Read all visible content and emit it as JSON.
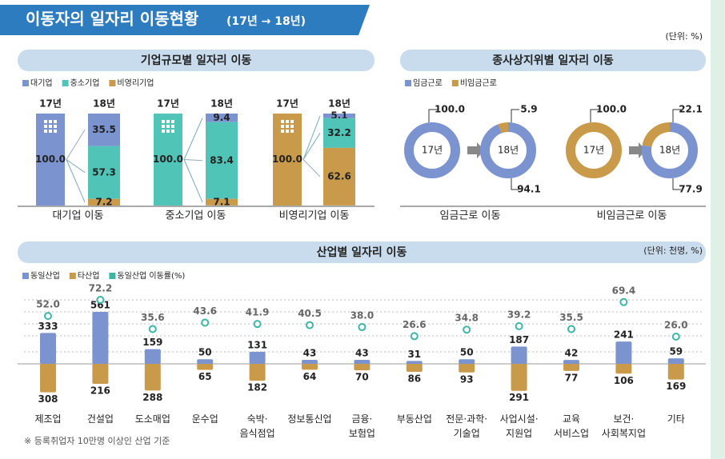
{
  "header": {
    "title": "이동자의 일자리 이동현황",
    "subtitle": "(17년 → 18년)",
    "unit": "(단위: %)",
    "footnote": "※ 등록취업자 10만명 이상인 산업 기준"
  },
  "chart_data": [
    {
      "type": "flowbar",
      "title": "기업규모별 일자리 이동",
      "before_label": "17년",
      "after_label": "18년",
      "categories": [
        "대기업 이동",
        "중소기업 이동",
        "비영리기업 이동"
      ],
      "before": {
        "values": [
          100,
          100,
          100
        ],
        "value_labels": [
          "100.0",
          "100.0",
          "100.0"
        ],
        "colors": [
          "#7b93cf",
          "#4fc4b7",
          "#c99a4a"
        ]
      },
      "series": [
        {
          "name": "대기업",
          "color": "#7b93cf",
          "values": [
            35.5,
            9.4,
            5.1
          ]
        },
        {
          "name": "중소기업",
          "color": "#4fc4b7",
          "values": [
            57.3,
            83.4,
            32.2
          ]
        },
        {
          "name": "비영리기업",
          "color": "#c99a4a",
          "values": [
            7.2,
            7.1,
            62.6
          ]
        }
      ]
    },
    {
      "type": "donut",
      "title": "종사상지위별 일자리 이동",
      "before_label": "17년",
      "after_label": "18년",
      "categories": [
        "임금근로 이동",
        "비임금근로 이동"
      ],
      "before": {
        "values": [
          100,
          100
        ],
        "value_labels": [
          "100.0",
          "100.0"
        ],
        "colors": [
          "#7b93cf",
          "#c99a4a"
        ]
      },
      "series": [
        {
          "name": "임금근로",
          "color": "#7b93cf",
          "values": [
            94.1,
            77.9
          ]
        },
        {
          "name": "비임금근로",
          "color": "#c99a4a",
          "values": [
            5.9,
            22.1
          ]
        }
      ]
    },
    {
      "type": "divergingbar",
      "title": "산업별 일자리 이동",
      "unit": "(단위: 천명, %)",
      "categories": [
        "제조업",
        "건설업",
        "도소매업",
        "운수업",
        "숙박·\n음식점업",
        "정보통신업",
        "금융·\n보험업",
        "부동산업",
        "전문·과학·\n기술업",
        "사업시설·\n지원업",
        "교육\n서비스업",
        "보건·\n사회복지업",
        "기타"
      ],
      "series": [
        {
          "name": "동일산업",
          "color": "#7b93cf",
          "values": [
            333,
            561,
            159,
            50,
            131,
            43,
            43,
            31,
            50,
            187,
            42,
            241,
            59
          ]
        },
        {
          "name": "타산업",
          "color": "#c99a4a",
          "values": [
            308,
            216,
            288,
            65,
            182,
            64,
            70,
            86,
            93,
            291,
            77,
            106,
            169
          ]
        },
        {
          "name": "동일산업 이동률(%)",
          "color": "#3bb7a8",
          "values": [
            52.0,
            72.2,
            35.6,
            43.6,
            41.9,
            40.5,
            38.0,
            26.6,
            34.8,
            39.2,
            35.5,
            69.4,
            26.0
          ],
          "value_labels": [
            "52.0",
            "72.2",
            "35.6",
            "43.6",
            "41.9",
            "40.5",
            "38.0",
            "26.6",
            "34.8",
            "39.2",
            "35.5",
            "69.4",
            "26.0"
          ]
        }
      ]
    }
  ]
}
